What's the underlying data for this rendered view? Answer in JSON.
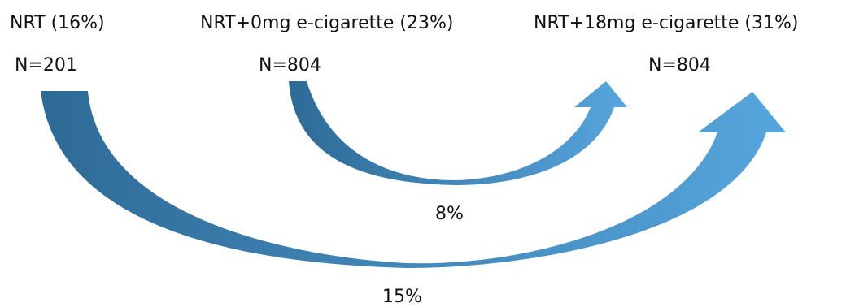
{
  "groups": [
    {
      "label": "NRT (16%)",
      "n": "N=201"
    },
    {
      "label": "NRT+0mg e-cigarette (23%)",
      "n": "N=804"
    },
    {
      "label": "NRT+18mg e-cigarette (31%)",
      "n": "N=804"
    }
  ],
  "arrows": [
    {
      "from": "NRT+0mg e-cigarette (23%)",
      "to": "NRT+18mg e-cigarette (31%)",
      "label": "8%"
    },
    {
      "from": "NRT (16%)",
      "to": "NRT+18mg e-cigarette (31%)",
      "label": "15%"
    }
  ],
  "colors": {
    "arrow_dark": "#2E6A96",
    "arrow_light": "#56A5DD",
    "text": "#111111"
  }
}
